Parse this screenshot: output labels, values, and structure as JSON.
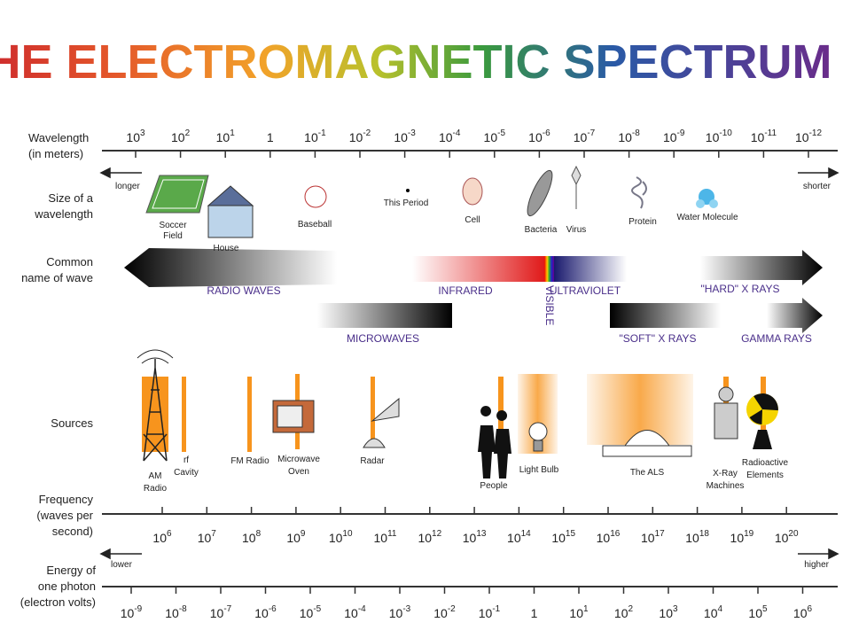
{
  "title": "THE ELECTROMAGNETIC SPECTRUM",
  "wavelength": {
    "label": [
      "Wavelength",
      "(in meters)"
    ],
    "ticks": [
      [
        "10",
        "3"
      ],
      [
        "10",
        "2"
      ],
      [
        "10",
        "1"
      ],
      [
        "1"
      ],
      [
        "10",
        "-1"
      ],
      [
        "10",
        "-2"
      ],
      [
        "10",
        "-3"
      ],
      [
        "10",
        "-4"
      ],
      [
        "10",
        "-5"
      ],
      [
        "10",
        "-6"
      ],
      [
        "10",
        "-7"
      ],
      [
        "10",
        "-8"
      ],
      [
        "10",
        "-9"
      ],
      [
        "10",
        "-10"
      ],
      [
        "10",
        "-11"
      ],
      [
        "10",
        "-12"
      ]
    ],
    "longer": "longer",
    "shorter": "shorter"
  },
  "size": {
    "label": [
      "Size of a",
      "wavelength"
    ],
    "objects": [
      [
        "Soccer",
        "Field"
      ],
      [
        "House"
      ],
      [
        "Baseball"
      ],
      [
        "This Period"
      ],
      [
        "Cell"
      ],
      [
        "Bacteria"
      ],
      [
        "Virus"
      ],
      [
        "Protein"
      ],
      [
        "Water Molecule"
      ]
    ]
  },
  "waves": {
    "label": [
      "Common",
      "name of wave"
    ],
    "names": [
      "RADIO WAVES",
      "INFRARED",
      "VISIBLE",
      "ULTRAVIOLET",
      "\"HARD\" X RAYS",
      "MICROWAVES",
      "\"SOFT\" X RAYS",
      "GAMMA RAYS"
    ]
  },
  "sources": {
    "label": [
      "Sources"
    ],
    "items": [
      [
        "AM",
        "Radio"
      ],
      [
        "rf",
        "Cavity"
      ],
      [
        "FM Radio"
      ],
      [
        "Microwave",
        "Oven"
      ],
      [
        "Radar"
      ],
      [
        "People"
      ],
      [
        "Light Bulb"
      ],
      [
        "The ALS"
      ],
      [
        "X-Ray",
        "Machines"
      ],
      [
        "Radioactive",
        "Elements"
      ]
    ]
  },
  "frequency": {
    "label": [
      "Frequency",
      "(waves per",
      "second)"
    ],
    "ticks": [
      [
        "10",
        "6"
      ],
      [
        "10",
        "7"
      ],
      [
        "10",
        "8"
      ],
      [
        "10",
        "9"
      ],
      [
        "10",
        "10"
      ],
      [
        "10",
        "11"
      ],
      [
        "10",
        "12"
      ],
      [
        "10",
        "13"
      ],
      [
        "10",
        "14"
      ],
      [
        "10",
        "15"
      ],
      [
        "10",
        "16"
      ],
      [
        "10",
        "17"
      ],
      [
        "10",
        "18"
      ],
      [
        "10",
        "19"
      ],
      [
        "10",
        "20"
      ]
    ]
  },
  "energy": {
    "label": [
      "Energy of",
      "one photon",
      "(electron volts)"
    ],
    "ticks": [
      [
        "10",
        "-9"
      ],
      [
        "10",
        "-8"
      ],
      [
        "10",
        "-7"
      ],
      [
        "10",
        "-6"
      ],
      [
        "10",
        "-5"
      ],
      [
        "10",
        "-4"
      ],
      [
        "10",
        "-3"
      ],
      [
        "10",
        "-2"
      ],
      [
        "10",
        "-1"
      ],
      [
        "1"
      ],
      [
        "10",
        "1"
      ],
      [
        "10",
        "2"
      ],
      [
        "10",
        "3"
      ],
      [
        "10",
        "4"
      ],
      [
        "10",
        "5"
      ],
      [
        "10",
        "6"
      ]
    ],
    "lower": "lower",
    "higher": "higher"
  }
}
